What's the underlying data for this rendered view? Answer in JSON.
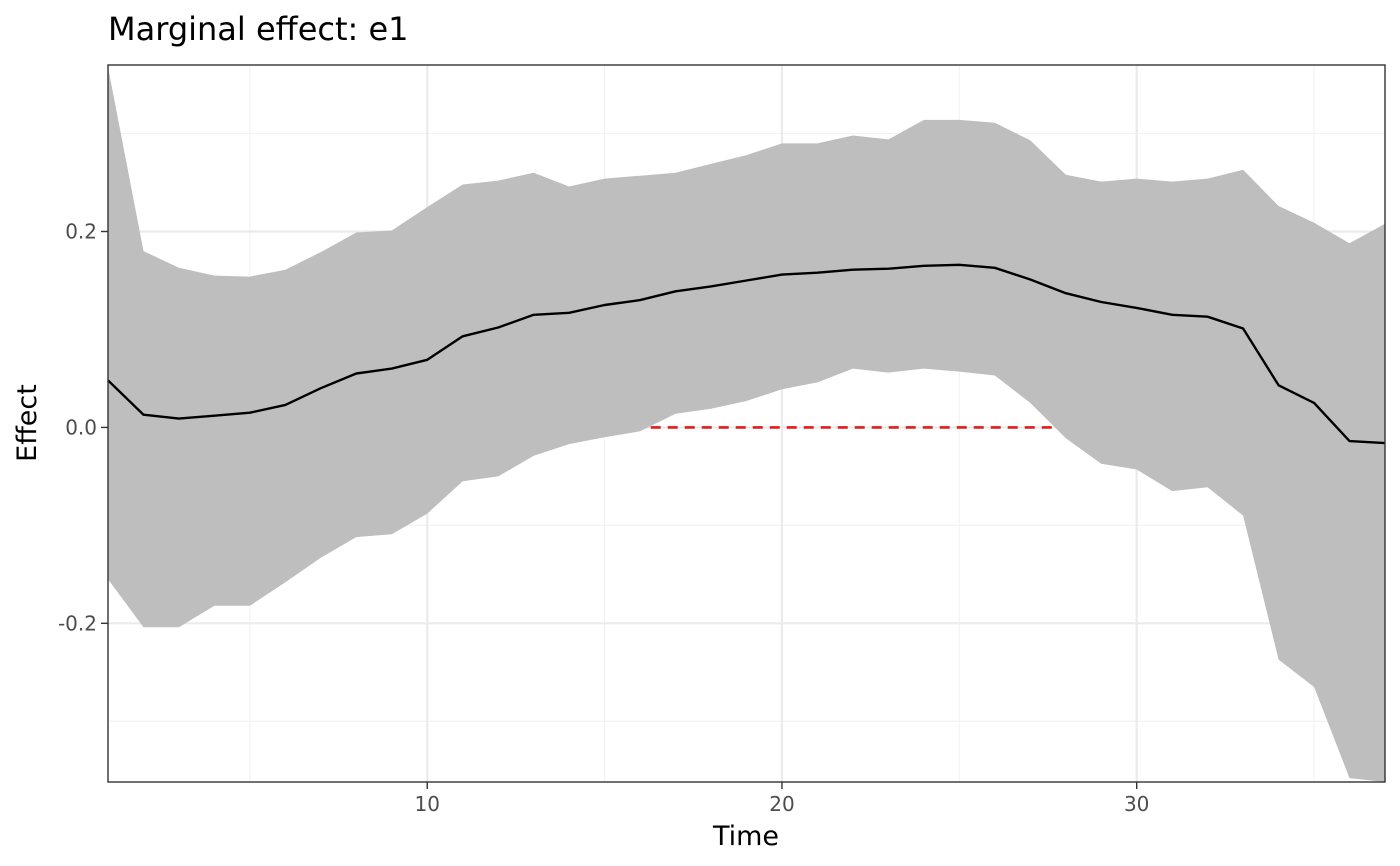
{
  "chart_data": {
    "type": "line",
    "title": "Marginal effect: e1",
    "xlabel": "Time",
    "ylabel": "Effect",
    "xlim": [
      1,
      37
    ],
    "ylim": [
      -0.362,
      0.37
    ],
    "x_ticks": [
      10,
      20,
      30
    ],
    "x_tick_labels": [
      "10",
      "20",
      "30"
    ],
    "y_ticks": [
      -0.2,
      0.0,
      0.2
    ],
    "y_tick_labels": [
      "-0.2",
      "0.0",
      "0.2"
    ],
    "grid": true,
    "legend": "none",
    "x": [
      1,
      2,
      3,
      4,
      5,
      6,
      7,
      8,
      9,
      10,
      11,
      12,
      13,
      14,
      15,
      16,
      17,
      18,
      19,
      20,
      21,
      22,
      23,
      24,
      25,
      26,
      27,
      28,
      29,
      30,
      31,
      32,
      33,
      34,
      35,
      36,
      37
    ],
    "series": [
      {
        "role": "estimate",
        "color": "#000000",
        "values": [
          0.048,
          0.013,
          0.009,
          0.012,
          0.015,
          0.023,
          0.04,
          0.055,
          0.06,
          0.069,
          0.093,
          0.102,
          0.115,
          0.117,
          0.125,
          0.13,
          0.139,
          0.144,
          0.15,
          0.156,
          0.158,
          0.161,
          0.162,
          0.165,
          0.166,
          0.163,
          0.151,
          0.137,
          0.128,
          0.122,
          0.115,
          0.113,
          0.101,
          0.043,
          0.025,
          -0.014,
          -0.016
        ]
      }
    ],
    "band": {
      "color": "#bebebe",
      "lower": [
        -0.155,
        -0.204,
        -0.204,
        -0.182,
        -0.182,
        -0.158,
        -0.133,
        -0.112,
        -0.109,
        -0.088,
        -0.055,
        -0.05,
        -0.029,
        -0.017,
        -0.01,
        -0.004,
        0.014,
        0.019,
        0.027,
        0.039,
        0.046,
        0.06,
        0.056,
        0.06,
        0.057,
        0.053,
        0.025,
        -0.011,
        -0.037,
        -0.043,
        -0.065,
        -0.061,
        -0.09,
        -0.237,
        -0.265,
        -0.358,
        -0.362
      ],
      "upper": [
        0.368,
        0.18,
        0.163,
        0.155,
        0.154,
        0.161,
        0.179,
        0.199,
        0.201,
        0.225,
        0.248,
        0.252,
        0.26,
        0.246,
        0.254,
        0.257,
        0.26,
        0.269,
        0.278,
        0.29,
        0.29,
        0.298,
        0.294,
        0.314,
        0.314,
        0.311,
        0.293,
        0.258,
        0.251,
        0.254,
        0.251,
        0.254,
        0.263,
        0.226,
        0.209,
        0.188,
        0.208
      ]
    },
    "reference_segment": {
      "y": 0.0,
      "x_start": 16.3,
      "x_end": 27.7,
      "color": "#e41a1c",
      "style": "dashed"
    }
  }
}
